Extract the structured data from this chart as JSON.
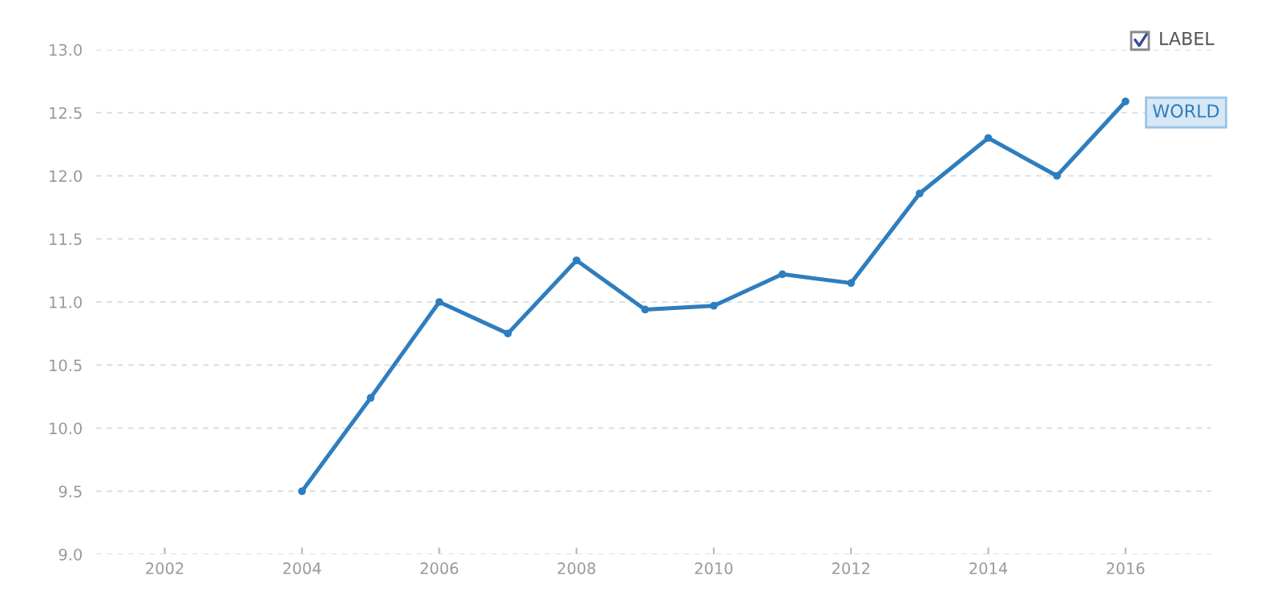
{
  "chart_data": {
    "type": "line",
    "x": [
      2004,
      2005,
      2006,
      2007,
      2008,
      2009,
      2010,
      2011,
      2012,
      2013,
      2014,
      2015,
      2016
    ],
    "series": [
      {
        "name": "WORLD",
        "color": "#2e7ebf",
        "values": [
          9.5,
          10.24,
          11.0,
          10.75,
          11.33,
          10.94,
          10.97,
          11.22,
          11.15,
          11.86,
          12.3,
          12.0,
          12.59
        ]
      }
    ],
    "xlim": [
      2001,
      2017.25
    ],
    "xticks": [
      2002,
      2004,
      2006,
      2008,
      2010,
      2012,
      2014,
      2016
    ],
    "ylim": [
      9.0,
      13.0
    ],
    "yticks": [
      {
        "value": 9.0,
        "label": "9.0"
      },
      {
        "value": 9.5,
        "label": "9.5"
      },
      {
        "value": 10.0,
        "label": "10.0"
      },
      {
        "value": 10.5,
        "label": "10.5"
      },
      {
        "value": 11.0,
        "label": "11.0"
      },
      {
        "value": 11.5,
        "label": "11.5"
      },
      {
        "value": 12.0,
        "label": "12.0"
      },
      {
        "value": 12.5,
        "label": "12.5"
      },
      {
        "value": 13.0,
        "label": "13.0"
      }
    ],
    "grid": "y",
    "marker": "circle",
    "line_style": "solid",
    "annotations": [
      "LABEL"
    ]
  }
}
